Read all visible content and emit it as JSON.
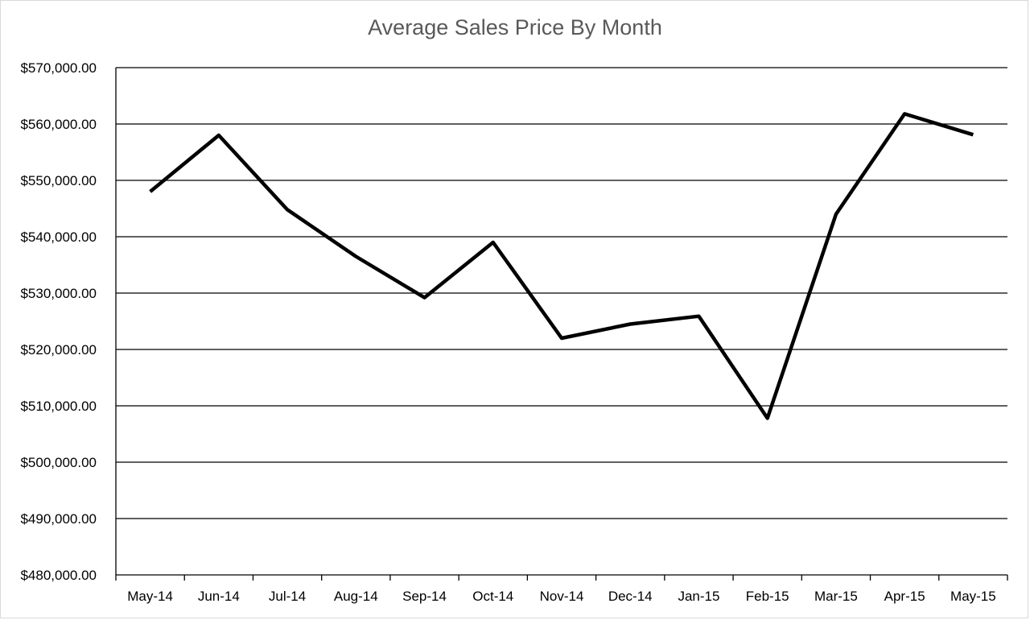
{
  "chart_data": {
    "type": "line",
    "title": "Average Sales Price By Month",
    "xlabel": "",
    "ylabel": "",
    "categories": [
      "May-14",
      "Jun-14",
      "Jul-14",
      "Aug-14",
      "Sep-14",
      "Oct-14",
      "Nov-14",
      "Dec-14",
      "Jan-15",
      "Feb-15",
      "Mar-15",
      "Apr-15",
      "May-15"
    ],
    "series": [
      {
        "values": [
          548000,
          558000,
          544800,
          536500,
          529200,
          539000,
          522000,
          524500,
          525900,
          507800,
          544000,
          561800,
          558100
        ],
        "color": "#000000"
      }
    ],
    "ylim": [
      480000,
      570000
    ],
    "y_ticks": [
      480000,
      490000,
      500000,
      510000,
      520000,
      530000,
      540000,
      550000,
      560000,
      570000
    ],
    "y_tick_labels": [
      "$480,000.00",
      "$490,000.00",
      "$500,000.00",
      "$510,000.00",
      "$520,000.00",
      "$530,000.00",
      "$540,000.00",
      "$550,000.00",
      "$560,000.00",
      "$570,000.00"
    ],
    "grid": true,
    "legend": "none",
    "colors": {
      "gridline": "#000000",
      "line": "#000000",
      "title": "#595959",
      "border": "#d9d9d9"
    }
  }
}
